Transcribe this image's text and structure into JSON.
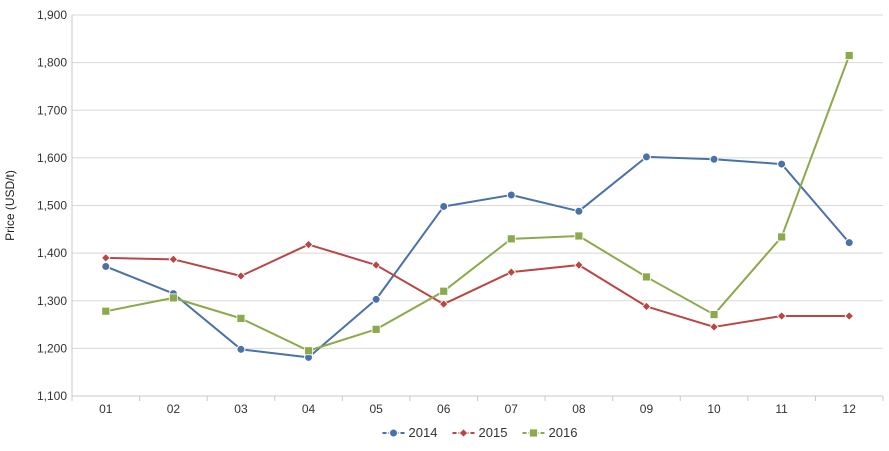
{
  "chart_data": {
    "type": "line",
    "title": "",
    "xlabel": "",
    "ylabel": "Price (USD/t)",
    "categories": [
      "01",
      "02",
      "03",
      "04",
      "05",
      "06",
      "07",
      "08",
      "09",
      "10",
      "11",
      "12"
    ],
    "ylim": [
      1100,
      1900
    ],
    "yticks": [
      1100,
      1200,
      1300,
      1400,
      1500,
      1600,
      1700,
      1800,
      1900
    ],
    "ytick_labels": [
      "1,100",
      "1,200",
      "1,300",
      "1,400",
      "1,500",
      "1,600",
      "1,700",
      "1,800",
      "1,900"
    ],
    "grid": true,
    "legend_position": "bottom-center",
    "series": [
      {
        "name": "2014",
        "color": "#4a72a8",
        "marker": "circle",
        "values": [
          1372,
          1315,
          1198,
          1181,
          1303,
          1498,
          1522,
          1488,
          1602,
          1597,
          1587,
          1422
        ]
      },
      {
        "name": "2015",
        "color": "#b94643",
        "marker": "diamond",
        "values": [
          1390,
          1387,
          1352,
          1418,
          1375,
          1293,
          1360,
          1375,
          1288,
          1245,
          1268,
          1268
        ]
      },
      {
        "name": "2016",
        "color": "#8ca94b",
        "marker": "square",
        "values": [
          1278,
          1306,
          1263,
          1195,
          1240,
          1320,
          1430,
          1436,
          1350,
          1271,
          1434,
          1815
        ]
      }
    ]
  }
}
